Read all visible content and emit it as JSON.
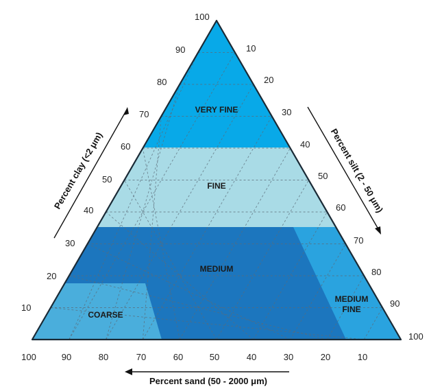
{
  "diagram": {
    "zones": [
      {
        "id": "very-fine",
        "label": "VERY FINE",
        "color": "#08a9e8"
      },
      {
        "id": "fine",
        "label": "FINE",
        "color": "#a9dbe6"
      },
      {
        "id": "medium",
        "label": "MEDIUM",
        "color": "#1c76be"
      },
      {
        "id": "coarse",
        "label": "COARSE",
        "color": "#4aaedc"
      },
      {
        "id": "medium-fine",
        "label_line1": "MEDIUM",
        "label_line2": "FINE",
        "color": "#2aa3df"
      }
    ],
    "axes": {
      "clay": {
        "title": "Percent clay (<2 μm)",
        "ticks": [
          "10",
          "20",
          "30",
          "40",
          "50",
          "60",
          "70",
          "80",
          "90",
          "100"
        ]
      },
      "silt": {
        "title": "Percent silt (2 - 50 μm)",
        "ticks": [
          "10",
          "20",
          "30",
          "40",
          "50",
          "60",
          "70",
          "80",
          "90",
          "100"
        ]
      },
      "sand": {
        "title": "Percent sand (50 - 2000 μm)",
        "ticks": [
          "100",
          "90",
          "80",
          "70",
          "60",
          "50",
          "40",
          "30",
          "20",
          "10"
        ]
      }
    },
    "grid_color": "#5b6b78",
    "outline_color": "#1a2a36"
  }
}
